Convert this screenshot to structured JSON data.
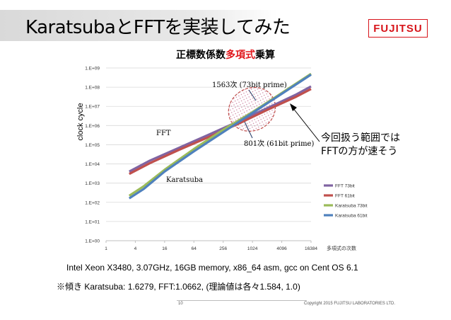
{
  "slide": {
    "title": "KaratsubaとFFTを実装してみた",
    "logo_text": "FUJITSU",
    "brand_color": "#d7141a",
    "page_number": "10",
    "copyright": "Copyright 2015 FUJITSU LABORATORIES LTD."
  },
  "callout": {
    "line1": "今回扱う範囲では",
    "line2": "FFTの方が速そう"
  },
  "footer": {
    "line1": "Intel Xeon X3480, 3.07GHz, 16GB memory, x86_64 asm, gcc on Cent OS 6.1",
    "line2": "※傾き Karatsuba: 1.6279, FFT:1.0662,  (理論値は各々1.584, 1.0)"
  },
  "chart_data": {
    "type": "line",
    "title_parts": [
      "正標数係数",
      "多項式",
      "乗算"
    ],
    "ylabel": "clock cycle",
    "xlabel": "多項式の次数",
    "x_scale": "log2",
    "y_scale": "log10",
    "xlim": [
      1,
      16384
    ],
    "ylim": [
      1,
      1000000000
    ],
    "x_ticks": [
      1,
      4,
      16,
      64,
      256,
      1024,
      4096,
      16384
    ],
    "x_tick_labels": [
      "1",
      "4",
      "16",
      "64",
      "256",
      "1024",
      "4096",
      "16384"
    ],
    "y_ticks": [
      1,
      10,
      100,
      1000,
      10000,
      100000,
      1000000,
      10000000,
      100000000,
      1000000000
    ],
    "y_tick_labels": [
      "1.E+00",
      "1.E+01",
      "1.E+02",
      "1.E+03",
      "1.E+04",
      "1.E+05",
      "1.E+06",
      "1.E+07",
      "1.E+08",
      "1.E+09"
    ],
    "grid": "horizontal",
    "legend_position": "right",
    "series": [
      {
        "name": "FFT 73bit",
        "color": "#8064a2",
        "x": [
          3,
          8,
          32,
          128,
          512,
          2048,
          8192,
          16384
        ],
        "y": [
          4000,
          15000,
          70000,
          330000,
          1600000,
          8000000,
          42000000,
          110000000
        ]
      },
      {
        "name": "FFT 61bit",
        "color": "#c0504d",
        "x": [
          3,
          8,
          32,
          128,
          512,
          2048,
          8192,
          16384
        ],
        "y": [
          3000,
          11000,
          55000,
          250000,
          1200000,
          6500000,
          32000000,
          80000000
        ]
      },
      {
        "name": "Karatsuba 73bit",
        "color": "#9bbb59",
        "x": [
          3,
          6,
          16,
          64,
          256,
          1024,
          4096,
          16384
        ],
        "y": [
          220,
          700,
          5000,
          60000,
          600000,
          5000000,
          50000000,
          500000000
        ]
      },
      {
        "name": "Karatsuba 61bit",
        "color": "#4f81bd",
        "x": [
          3,
          6,
          16,
          64,
          256,
          1024,
          4096,
          16384
        ],
        "y": [
          160,
          500,
          4000,
          45000,
          450000,
          4500000,
          45000000,
          450000000
        ]
      }
    ],
    "annotations": [
      {
        "text": "1563次 (73bit prime)"
      },
      {
        "text": "801次 (61bit prime)"
      },
      {
        "text": "FFT"
      },
      {
        "text": "Karatsuba"
      }
    ]
  }
}
